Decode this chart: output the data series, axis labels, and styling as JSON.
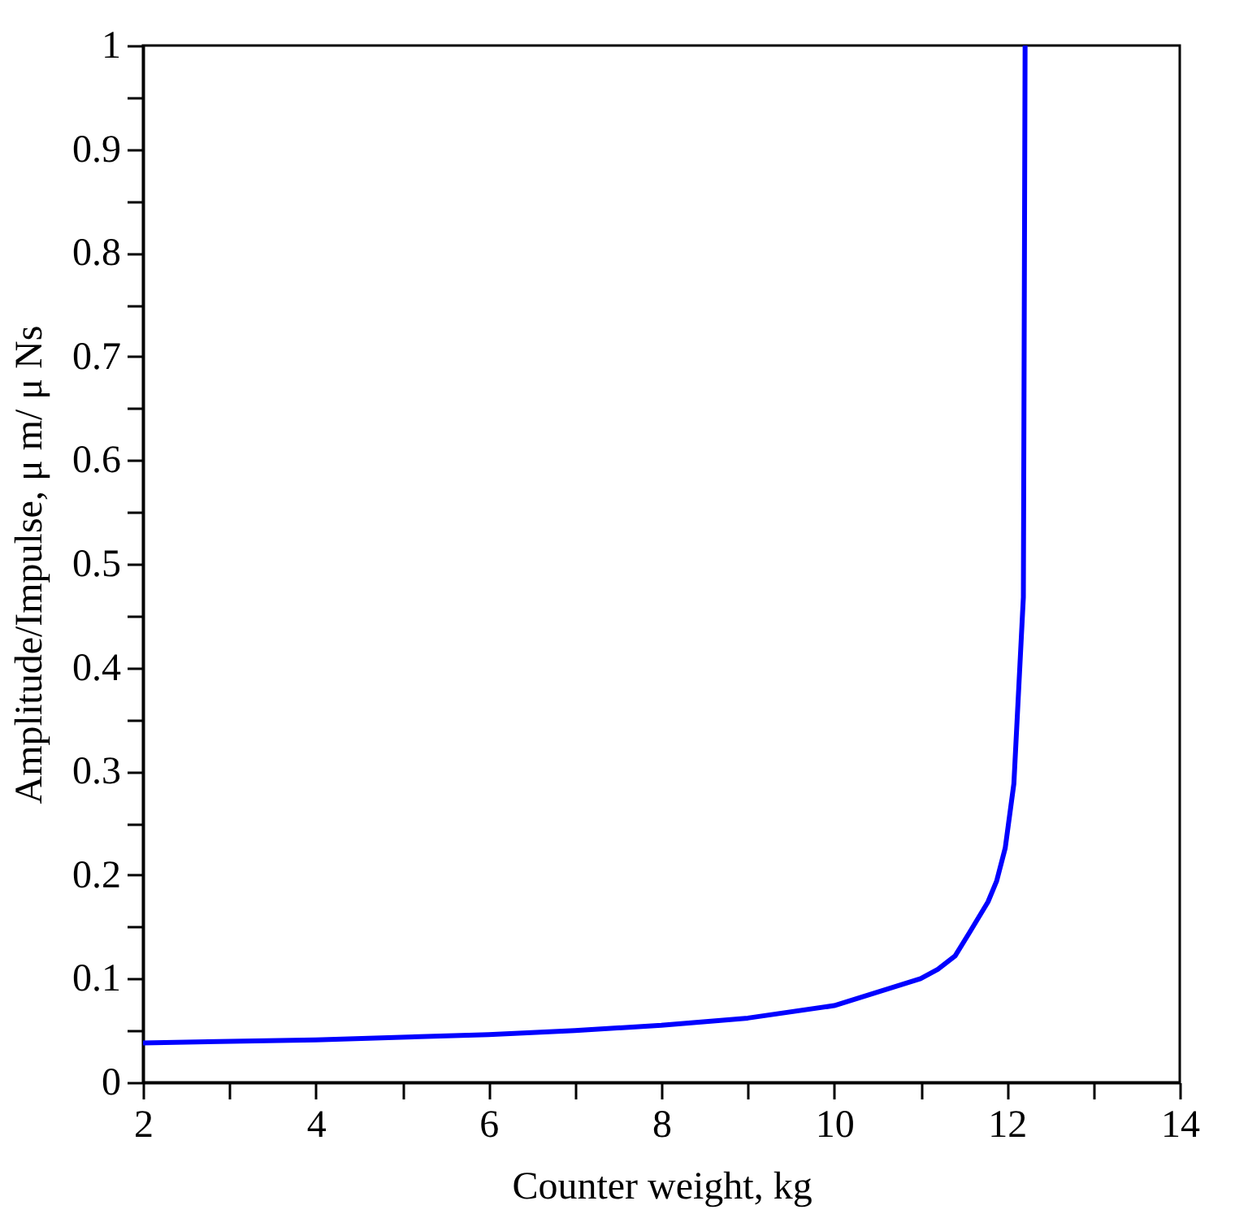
{
  "chart_data": {
    "type": "line",
    "xlabel": "Counter weight, kg",
    "ylabel": "Amplitude/Impulse,    μ m/ μ Ns",
    "x": [
      2,
      4,
      6,
      7,
      8,
      9,
      10,
      11,
      11.2,
      11.4,
      11.57,
      11.78,
      11.88,
      11.98,
      12.08,
      12.19,
      12.21
    ],
    "series": [
      {
        "color": "#0000ff",
        "values": [
          0.038,
          0.041,
          0.046,
          0.05,
          0.055,
          0.062,
          0.074,
          0.1,
          0.109,
          0.122,
          0.145,
          0.174,
          0.194,
          0.226,
          0.288,
          0.468,
          1.0
        ]
      }
    ],
    "xlim": [
      2,
      14
    ],
    "xticks": [
      2,
      {
        "value": 3,
        "label": null
      },
      4,
      {
        "value": 5,
        "label": null
      },
      6,
      {
        "value": 7,
        "label": null
      },
      8,
      {
        "value": 9,
        "label": null
      },
      10,
      {
        "value": 11,
        "label": null
      },
      12,
      {
        "value": 13,
        "label": null
      },
      14
    ],
    "ylim": [
      0,
      1
    ],
    "yticks": [
      0,
      {
        "value": 0.05,
        "label": null
      },
      0.1,
      {
        "value": 0.15,
        "label": null
      },
      0.2,
      {
        "value": 0.25,
        "label": null
      },
      0.3,
      {
        "value": 0.35,
        "label": null
      },
      0.4,
      {
        "value": 0.45,
        "label": null
      },
      0.5,
      {
        "value": 0.55,
        "label": null
      },
      0.6,
      {
        "value": 0.65,
        "label": null
      },
      0.7,
      {
        "value": 0.75,
        "label": null
      },
      0.8,
      {
        "value": 0.85,
        "label": null
      },
      0.9,
      {
        "value": 0.95,
        "label": null
      },
      1
    ],
    "grid": false,
    "marker": "none",
    "line_style": "solid"
  }
}
